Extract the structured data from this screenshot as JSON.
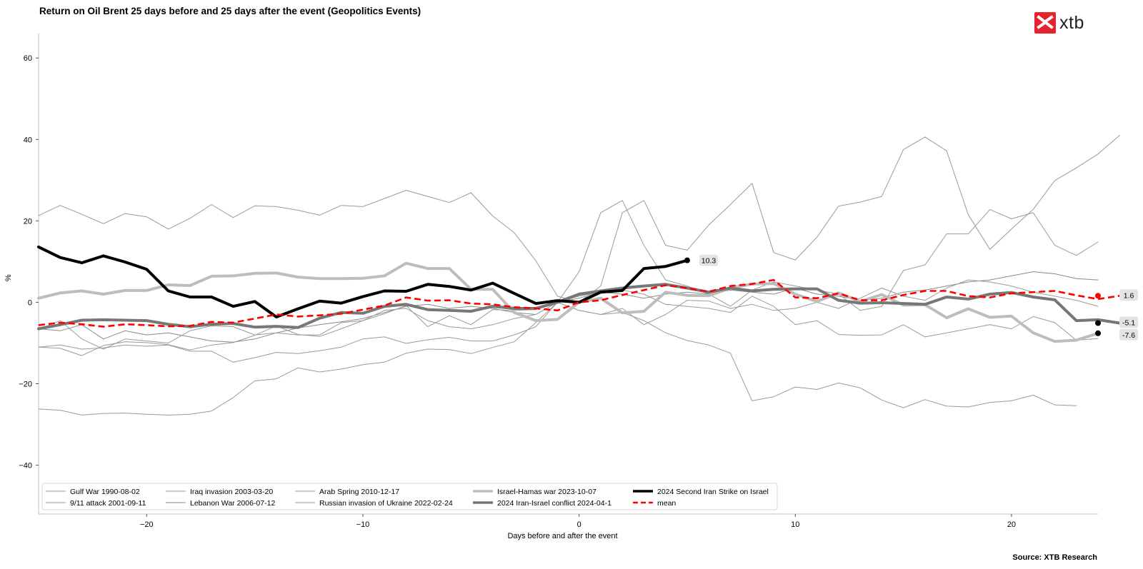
{
  "header": {
    "title": "Return on Oil Brent 25 days before and 25 days after the event (Geopolitics Events)",
    "logo_text": "xtb",
    "source": "Source: XTB Research"
  },
  "chart_data": {
    "type": "line",
    "title": "Return on Oil Brent 25 days before and 25 days after the event (Geopolitics Events)",
    "xlabel": "Days before and after the event",
    "ylabel": "%",
    "xlim": [
      -25,
      24
    ],
    "ylim": [
      -52,
      66
    ],
    "xticks": [
      -20,
      -10,
      0,
      10,
      20
    ],
    "xtick_labels": [
      "−20",
      "−10",
      "0",
      "10",
      "20"
    ],
    "yticks": [
      60,
      40,
      20,
      0,
      -20,
      -40
    ],
    "ytick_labels": [
      "60",
      "40",
      "20",
      "0",
      "−20",
      "−40"
    ],
    "grid": false,
    "legend_position": "bottom-left",
    "x_start": -25,
    "series": [
      {
        "name": "Gulf War 1990-08-02",
        "color": "#9a9a9a",
        "width": 1,
        "values": [
          21.3,
          23.8,
          21.6,
          19.3,
          21.8,
          21.0,
          18.0,
          20.6,
          24.0,
          20.8,
          23.7,
          23.5,
          22.6,
          21.4,
          23.8,
          23.5,
          25.5,
          27.5,
          26.0,
          24.5,
          26.9,
          21.2,
          17.1,
          10.2,
          1.5,
          0,
          4.0,
          22.0,
          25.0,
          14.0,
          12.8,
          19.0,
          24.0,
          29.2,
          12.2,
          10.4,
          16.0,
          23.6,
          24.6,
          26.0,
          37.5,
          40.6,
          37.2,
          21.5,
          13.0,
          18.0,
          22.8,
          29.9,
          33.0,
          36.4,
          41.0
        ]
      },
      {
        "name": "9/11 attack 2001-09-11",
        "color": "#9a9a9a",
        "width": 1,
        "values": [
          -26.2,
          -26.5,
          -27.7,
          -27.3,
          -27.2,
          -27.5,
          -27.7,
          -27.5,
          -26.7,
          -23.4,
          -19.3,
          -18.8,
          -16.1,
          -17.1,
          -16.4,
          -15.3,
          -14.7,
          -12.5,
          -11.5,
          -11.6,
          -12.6,
          -11.1,
          -9.7,
          -5.0,
          0,
          -2.0,
          -3.0,
          -2.5,
          -4.5,
          -7.5,
          -9.4,
          -10.5,
          -12.5,
          -24.2,
          -23.2,
          -20.8,
          -21.4,
          -19.8,
          -21.0,
          -24.0,
          -25.9,
          -23.9,
          -25.5,
          -25.7,
          -24.6,
          -24.2,
          -22.8,
          -25.2,
          -25.4
        ]
      },
      {
        "name": "Iraq invasion 2003-03-20",
        "color": "#9a9a9a",
        "width": 1,
        "values": [
          -11.0,
          -10.5,
          -11.5,
          -11.2,
          -10.5,
          -10.8,
          -10.5,
          -12.0,
          -12.0,
          -14.7,
          -13.6,
          -12.3,
          -12.6,
          -11.9,
          -11.0,
          -9.0,
          -8.5,
          -10.1,
          -9.2,
          -8.6,
          -9.5,
          -9.5,
          -8.0,
          -6.0,
          0,
          1.5,
          2.5,
          3.0,
          2.0,
          -0.5,
          -1.0,
          -1.5,
          -2.5,
          1.5,
          -1.0,
          -5.5,
          -4.5,
          -7.9,
          -8.1,
          -8.0,
          -5.5,
          -8.5,
          -7.5,
          -6.5,
          -5.5,
          -6.5,
          -3.5,
          -5.0,
          -9.3,
          -8.9
        ]
      },
      {
        "name": "Lebanon War 2006-07-12",
        "color": "#8a8a8a",
        "width": 1,
        "values": [
          -6.5,
          -7.0,
          -5.5,
          -9.0,
          -7.0,
          -8.0,
          -7.5,
          -8.5,
          -9.5,
          -9.8,
          -9.0,
          -7.5,
          -6.3,
          -5.5,
          -4.8,
          -4.0,
          -2.5,
          -1.0,
          -0.5,
          -1.5,
          -1.0,
          -1.5,
          -2.5,
          -3.0,
          0,
          1.0,
          2.5,
          2.0,
          1.0,
          2.0,
          2.5,
          2.0,
          3.0,
          2.5,
          2.0,
          3.5,
          2.0,
          1.5,
          0.5,
          1.0,
          2.5,
          3.0,
          4.0,
          5.0,
          5.5,
          6.5,
          7.5,
          7.0,
          5.8,
          5.5
        ]
      },
      {
        "name": "Arab Spring 2010-12-17",
        "color": "#9a9a9a",
        "width": 1,
        "values": [
          -6.7,
          -4.5,
          -9.0,
          -11.5,
          -9.0,
          -9.5,
          -10.0,
          -7.0,
          -5.8,
          -6.0,
          -8.0,
          -7.5,
          -8.0,
          -8.0,
          -5.0,
          -4.5,
          -2.0,
          -1.5,
          -4.5,
          -6.0,
          -6.5,
          -5.5,
          -4.0,
          -3.0,
          0,
          -2.0,
          -3.0,
          -1.5,
          -5.5,
          -3.0,
          0.5,
          0.3,
          -1.5,
          -0.5,
          -2.0,
          -1.5,
          0,
          -1.5,
          1.0,
          3.5,
          1.5,
          0.5,
          3.5,
          5.5,
          5.0,
          4.0,
          2.5,
          1.5,
          0.5,
          -1.0
        ]
      },
      {
        "name": "Russian invasion of Ukraine 2022-02-24",
        "color": "#9a9a9a",
        "width": 1,
        "values": [
          -11.0,
          -11.3,
          -13.1,
          -10.6,
          -9.7,
          -9.9,
          -10.4,
          -11.7,
          -10.5,
          -9.9,
          -8.1,
          -5.8,
          -7.9,
          -8.4,
          -6.5,
          -4.5,
          -2.8,
          -0.8,
          -6.0,
          -3.3,
          -5.5,
          -1.8,
          -2.0,
          -1.8,
          0,
          7.5,
          22.0,
          25.0,
          14.0,
          5.5,
          4.0,
          2.0,
          -1.0,
          3.0,
          5.0,
          4.0,
          3.0,
          2.0,
          -2.0,
          -1.0,
          7.8,
          9.2,
          16.8,
          16.8,
          22.8,
          20.5,
          22.0,
          14.0,
          11.5,
          14.8
        ]
      },
      {
        "name": "Israel-Hamas war 2023-10-07",
        "color": "#bdbdbd",
        "width": 4,
        "values": [
          1.0,
          2.3,
          2.8,
          2.0,
          2.9,
          2.9,
          4.3,
          4.1,
          6.4,
          6.5,
          7.1,
          7.2,
          6.2,
          5.8,
          5.8,
          5.9,
          6.5,
          9.6,
          8.3,
          8.3,
          3.2,
          3.2,
          -2.5,
          -4.5,
          -4.2,
          0,
          1.0,
          -2.6,
          -2.2,
          2.5,
          1.7,
          1.6,
          3.5,
          4.5,
          4.6,
          2.0,
          0.2,
          2.3,
          0.2,
          1.9,
          -0.7,
          -0.6,
          -3.8,
          -1.6,
          -3.7,
          -3.4,
          -7.5,
          -9.6,
          -9.3,
          -7.6
        ]
      },
      {
        "name": "2024 Iran-Israel conflict 2024-04-1",
        "color": "#777777",
        "width": 4,
        "values": [
          -6.5,
          -5.5,
          -4.4,
          -4.3,
          -4.4,
          -4.5,
          -5.4,
          -6.0,
          -5.4,
          -5.2,
          -6.1,
          -5.9,
          -6.2,
          -3.9,
          -2.5,
          -2.7,
          -1.0,
          -0.5,
          -1.8,
          -2.0,
          -2.2,
          -1.0,
          -1.5,
          -1.5,
          0,
          2.0,
          2.8,
          3.5,
          4.0,
          4.4,
          3.5,
          2.5,
          3.5,
          2.8,
          3.2,
          3.3,
          3.3,
          0.5,
          -0.2,
          -0.1,
          -0.3,
          -0.5,
          1.3,
          0.8,
          2.0,
          2.4,
          1.3,
          0.6,
          -4.5,
          -4.3,
          -5.1
        ]
      },
      {
        "name": "2024 Second Iran Strike on Israel",
        "color": "#000000",
        "width": 4,
        "values": [
          13.6,
          11.0,
          9.7,
          11.4,
          9.9,
          8.1,
          2.8,
          1.3,
          1.3,
          -1.0,
          0.2,
          -3.6,
          -1.6,
          0.3,
          -0.2,
          1.4,
          2.8,
          2.7,
          4.4,
          3.9,
          3.0,
          4.7,
          2.2,
          -0.3,
          0.4,
          0,
          2.5,
          2.9,
          8.3,
          8.8,
          10.3
        ]
      },
      {
        "name": "mean",
        "color": "#ff0000",
        "width": 2.6,
        "dash": true,
        "values": [
          -5.6,
          -5.0,
          -5.4,
          -6.0,
          -5.4,
          -5.6,
          -5.9,
          -5.8,
          -4.8,
          -5.0,
          -4.0,
          -3.0,
          -3.5,
          -3.2,
          -2.8,
          -1.8,
          -0.8,
          1.2,
          0.4,
          0.5,
          -0.3,
          -0.5,
          -1.2,
          -1.5,
          -2.0,
          0,
          0.5,
          1.8,
          3.0,
          4.2,
          3.5,
          2.6,
          4.0,
          4.5,
          5.5,
          1.2,
          1.0,
          2.2,
          0.5,
          0.5,
          1.8,
          2.8,
          2.8,
          1.5,
          1.2,
          2.2,
          2.5,
          2.8,
          1.7,
          0.8,
          1.6
        ]
      }
    ],
    "end_labels": [
      {
        "text": "10.3",
        "x": 5,
        "y": 10.3,
        "series": "2024 Second Iran Strike on Israel"
      },
      {
        "text": "1.6",
        "x": 24,
        "y": 1.6,
        "series": "mean"
      },
      {
        "text": "-5.1",
        "x": 24,
        "y": -5.1,
        "series": "2024 Iran-Israel conflict 2024-04-1"
      },
      {
        "text": "-7.6",
        "x": 24,
        "y": -7.6,
        "series": "Israel-Hamas war 2023-10-07"
      }
    ],
    "legend_columns": [
      [
        "Gulf War 1990-08-02",
        "9/11 attack 2001-09-11"
      ],
      [
        "Iraq invasion 2003-03-20",
        "Lebanon War 2006-07-12"
      ],
      [
        "Arab Spring 2010-12-17",
        "Russian invasion of Ukraine 2022-02-24"
      ],
      [
        "Israel-Hamas war 2023-10-07",
        "2024 Iran-Israel conflict 2024-04-1"
      ],
      [
        "2024 Second Iran Strike on Israel",
        "mean"
      ]
    ]
  }
}
